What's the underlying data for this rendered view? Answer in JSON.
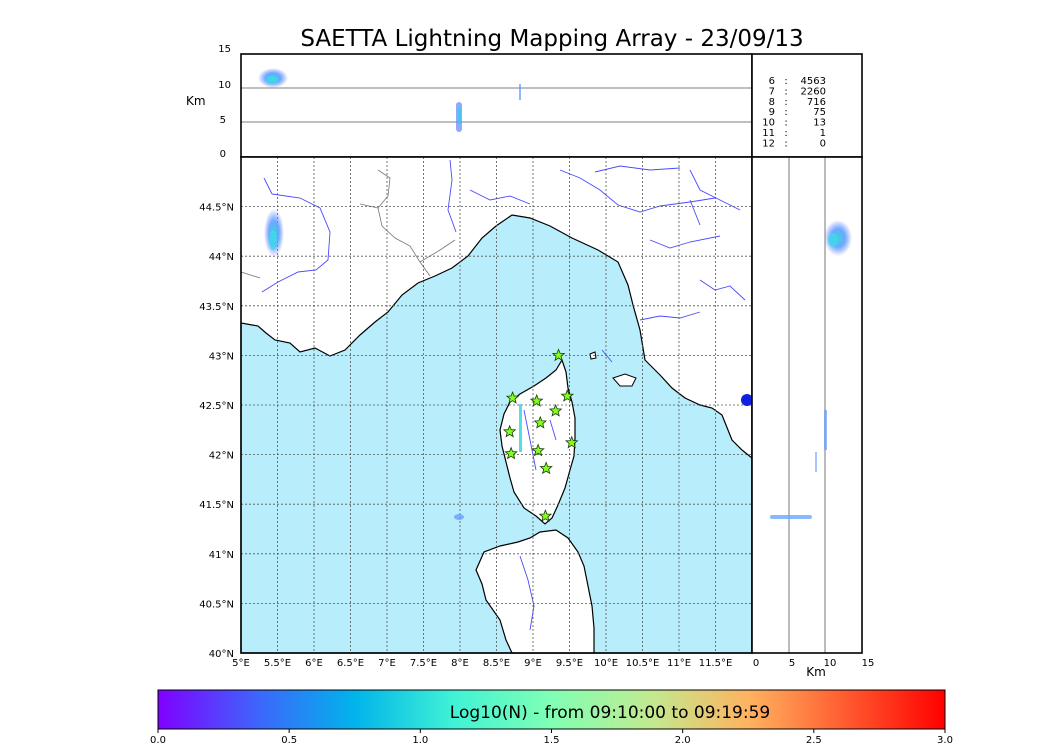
{
  "title": "SAETTA Lightning Mapping Array - 23/09/13",
  "altitude_panel": {
    "ylabel": "Km",
    "yticks": [
      "15",
      "10",
      "5",
      "0"
    ]
  },
  "side_panel": {
    "xlabel": "Km",
    "xticks": [
      "0",
      "5",
      "10",
      "15"
    ]
  },
  "map": {
    "lon_ticks": [
      "5°E",
      "5.5°E",
      "6°E",
      "6.5°E",
      "7°E",
      "7.5°E",
      "8°E",
      "8.5°E",
      "9°E",
      "9.5°E",
      "10°E",
      "10.5°E",
      "11°E",
      "11.5°E"
    ],
    "lat_ticks": [
      "40°N",
      "40.5°N",
      "41°N",
      "41.5°N",
      "42°N",
      "42.5°N",
      "43°N",
      "43.5°N",
      "44°N",
      "44.5°N"
    ],
    "lon_range": [
      5,
      12
    ],
    "lat_range": [
      40,
      45
    ],
    "sea_color": "#b8eefc",
    "land_color": "#ffffff",
    "river_color": "#4a4aff",
    "station_marker": "star",
    "station_color": "#80ff20",
    "stations": [
      {
        "lon": 9.35,
        "lat": 43.0
      },
      {
        "lon": 8.72,
        "lat": 42.57
      },
      {
        "lon": 9.05,
        "lat": 42.54
      },
      {
        "lon": 9.47,
        "lat": 42.59
      },
      {
        "lon": 9.31,
        "lat": 42.44
      },
      {
        "lon": 9.1,
        "lat": 42.32
      },
      {
        "lon": 8.68,
        "lat": 42.23
      },
      {
        "lon": 9.53,
        "lat": 42.12
      },
      {
        "lon": 9.07,
        "lat": 42.04
      },
      {
        "lon": 8.7,
        "lat": 42.01
      },
      {
        "lon": 9.18,
        "lat": 41.86
      },
      {
        "lon": 9.17,
        "lat": 41.38
      }
    ]
  },
  "stats": [
    {
      "label": "6",
      "value": "4563",
      "color": "#000000"
    },
    {
      "label": "7",
      "value": "2260",
      "color": "#ff0000"
    },
    {
      "label": "8",
      "value": "716",
      "color": "#000000"
    },
    {
      "label": "9",
      "value": "75",
      "color": "#000000"
    },
    {
      "label": "10",
      "value": "13",
      "color": "#000000"
    },
    {
      "label": "11",
      "value": "1",
      "color": "#000000"
    },
    {
      "label": "12",
      "value": "0",
      "color": "#000000"
    }
  ],
  "colorbar": {
    "label": "Log10(N) - from 09:10:00 to 09:19:59",
    "ticks": [
      "0.0",
      "0.5",
      "1.0",
      "1.5",
      "2.0",
      "2.5",
      "3.0"
    ],
    "colors": [
      "#7f00ff",
      "#3f64fc",
      "#00b4eb",
      "#40f2d5",
      "#80ffb4",
      "#c1ea91",
      "#ffb360",
      "#ff5a2f",
      "#ff0000"
    ]
  }
}
